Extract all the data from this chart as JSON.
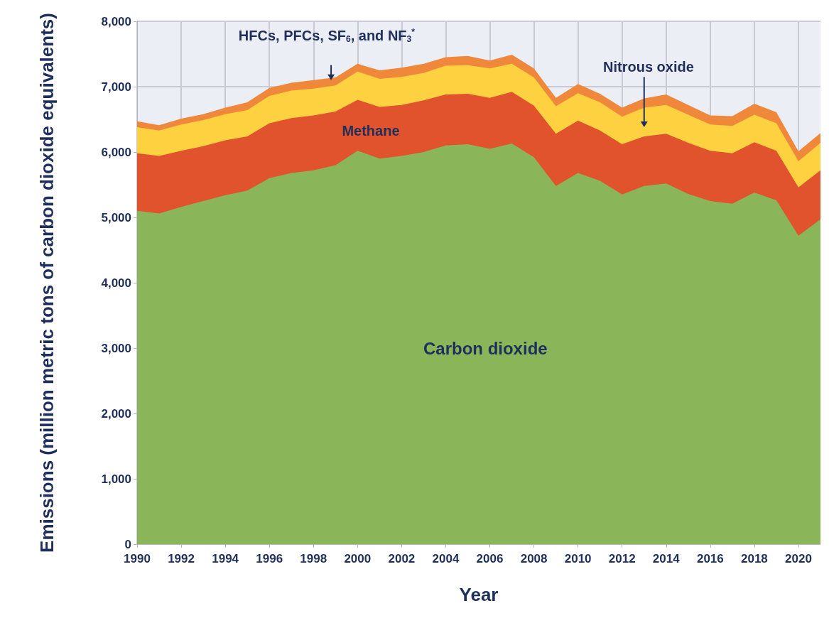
{
  "chart_data": {
    "type": "area",
    "stacked": true,
    "xlabel": "Year",
    "ylabel": "Emissions (million metric tons of carbon dioxide equivalents)",
    "x": [
      1990,
      1991,
      1992,
      1993,
      1994,
      1995,
      1996,
      1997,
      1998,
      1999,
      2000,
      2001,
      2002,
      2003,
      2004,
      2005,
      2006,
      2007,
      2008,
      2009,
      2010,
      2011,
      2012,
      2013,
      2014,
      2015,
      2016,
      2017,
      2018,
      2019,
      2020,
      2021
    ],
    "xlim": [
      1990,
      2021
    ],
    "xticks": [
      1990,
      1992,
      1994,
      1996,
      1998,
      2000,
      2002,
      2004,
      2006,
      2008,
      2010,
      2012,
      2014,
      2016,
      2018,
      2020
    ],
    "ylim": [
      0,
      8000
    ],
    "yticks": [
      {
        "value": 0,
        "label": "0"
      },
      {
        "value": 1000,
        "label": "1,000"
      },
      {
        "value": 2000,
        "label": "2,000"
      },
      {
        "value": 3000,
        "label": "3,000"
      },
      {
        "value": 4000,
        "label": "4,000"
      },
      {
        "value": 5000,
        "label": "5,000"
      },
      {
        "value": 6000,
        "label": "6,000"
      },
      {
        "value": 7000,
        "label": "7,000"
      },
      {
        "value": 8000,
        "label": "8,000"
      }
    ],
    "grid": true,
    "legend": false,
    "series": [
      {
        "name": "Carbon dioxide",
        "color": "#8ab659",
        "values": [
          5100,
          5060,
          5160,
          5250,
          5340,
          5410,
          5600,
          5680,
          5720,
          5800,
          6020,
          5900,
          5940,
          6000,
          6100,
          6120,
          6050,
          6130,
          5920,
          5480,
          5680,
          5560,
          5350,
          5480,
          5520,
          5360,
          5250,
          5210,
          5380,
          5260,
          4720,
          4970
        ]
      },
      {
        "name": "Methane",
        "color": "#e0532c",
        "values": [
          880,
          880,
          860,
          840,
          840,
          830,
          840,
          840,
          840,
          820,
          780,
          790,
          780,
          790,
          780,
          770,
          780,
          790,
          790,
          800,
          800,
          770,
          770,
          760,
          760,
          780,
          770,
          770,
          770,
          760,
          740,
          750
        ]
      },
      {
        "name": "Nitrous oxide",
        "color": "#fdd13f",
        "values": [
          400,
          390,
          400,
          400,
          400,
          400,
          420,
          420,
          410,
          400,
          430,
          430,
          430,
          420,
          440,
          440,
          450,
          430,
          430,
          420,
          420,
          430,
          420,
          440,
          440,
          430,
          400,
          420,
          420,
          420,
          400,
          420
        ]
      },
      {
        "name": "HFCs, PFCs, SF$_{6}$, and NF$_{3}$$^{*}$",
        "color": "#f0883c",
        "values": [
          90,
          80,
          90,
          90,
          100,
          120,
          120,
          120,
          130,
          120,
          120,
          130,
          140,
          140,
          130,
          140,
          120,
          140,
          140,
          130,
          140,
          130,
          140,
          140,
          160,
          150,
          140,
          150,
          170,
          170,
          150,
          150
        ]
      }
    ]
  }
}
